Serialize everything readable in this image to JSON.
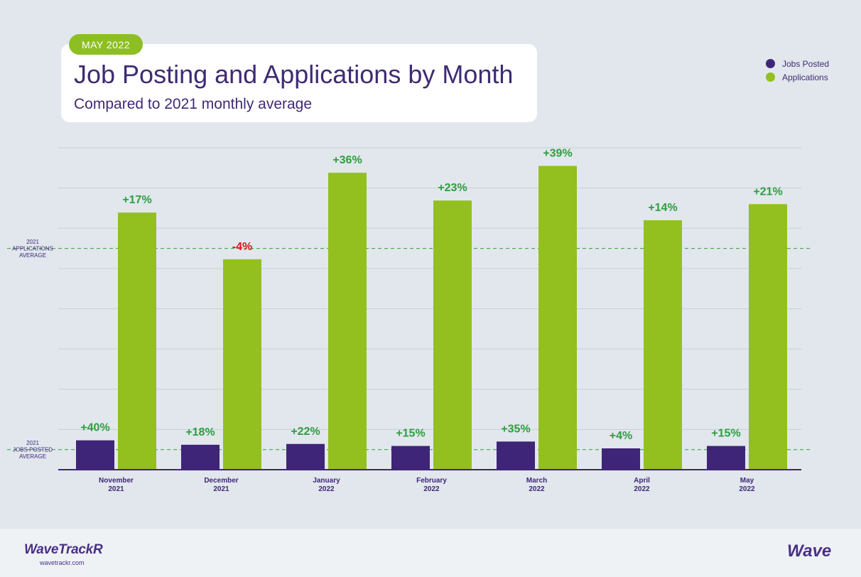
{
  "header": {
    "badge": "MAY 2022",
    "title": "Job Posting and Applications by Month",
    "subtitle": "Compared to 2021 monthly average"
  },
  "legend": [
    {
      "label": "Jobs Posted",
      "color": "#3f2577"
    },
    {
      "label": "Applications",
      "color": "#93c01f"
    }
  ],
  "chart_data": {
    "type": "bar",
    "title": "Job Posting and Applications by Month",
    "subtitle": "Compared to 2021 monthly average",
    "categories": [
      [
        "November",
        "2021"
      ],
      [
        "December",
        "2021"
      ],
      [
        "January",
        "2022"
      ],
      [
        "February",
        "2022"
      ],
      [
        "March",
        "2022"
      ],
      [
        "April",
        "2022"
      ],
      [
        "May",
        "2022"
      ]
    ],
    "series": [
      {
        "name": "Jobs Posted",
        "color": "#3f2577",
        "values": [
          0.73,
          0.62,
          0.64,
          0.59,
          0.7,
          0.53,
          0.59
        ],
        "labels": [
          "+40%",
          "+18%",
          "+22%",
          "+15%",
          "+35%",
          "+4%",
          "+15%"
        ]
      },
      {
        "name": "Applications",
        "color": "#93c01f",
        "values": [
          6.39,
          5.23,
          7.38,
          6.69,
          7.55,
          6.2,
          6.6
        ],
        "labels": [
          "+17%",
          "-4%",
          "+36%",
          "+23%",
          "+39%",
          "+14%",
          "+21%"
        ]
      }
    ],
    "reference_lines": [
      {
        "value": 5.5,
        "label": [
          "2021",
          "APPLICATIONS",
          "AVERAGE"
        ]
      },
      {
        "value": 0.5,
        "label": [
          "2021",
          "JOBS POSTED",
          "AVERAGE"
        ]
      }
    ],
    "ylim": [
      0,
      8
    ],
    "grid": true,
    "positive_label_color": "#2e9e3f",
    "negative_label_color": "#e3101b",
    "reference_color": "#3a9a3a",
    "axis_color": "#3f2577"
  },
  "footer": {
    "brand_left": "WaveTrackR",
    "brand_url": "wavetrackr.com",
    "brand_right": "Wave"
  }
}
